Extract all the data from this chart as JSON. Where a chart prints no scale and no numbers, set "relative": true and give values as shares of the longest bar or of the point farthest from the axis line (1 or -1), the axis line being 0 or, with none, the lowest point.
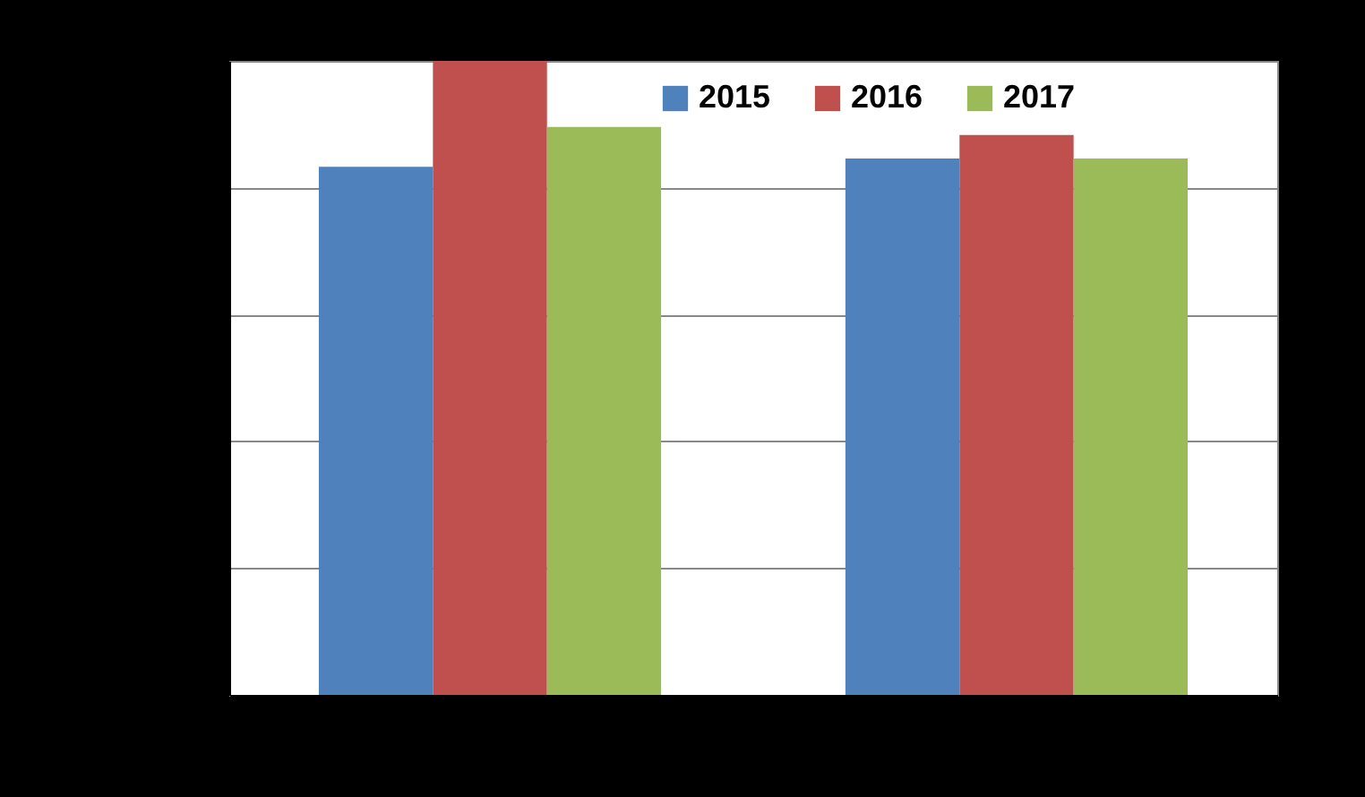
{
  "chart_data": {
    "type": "bar",
    "relative": true,
    "categories": [
      null,
      null
    ],
    "series": [
      {
        "name": "2015",
        "color": "#4f81bd",
        "values": [
          0.833,
          0.846
        ]
      },
      {
        "name": "2016",
        "color": "#c0504d",
        "values": [
          1,
          0.883
        ]
      },
      {
        "name": "2017",
        "color": "#9bbb59",
        "values": [
          0.896,
          0.846
        ]
      }
    ],
    "grid": "y",
    "legend": "top"
  }
}
